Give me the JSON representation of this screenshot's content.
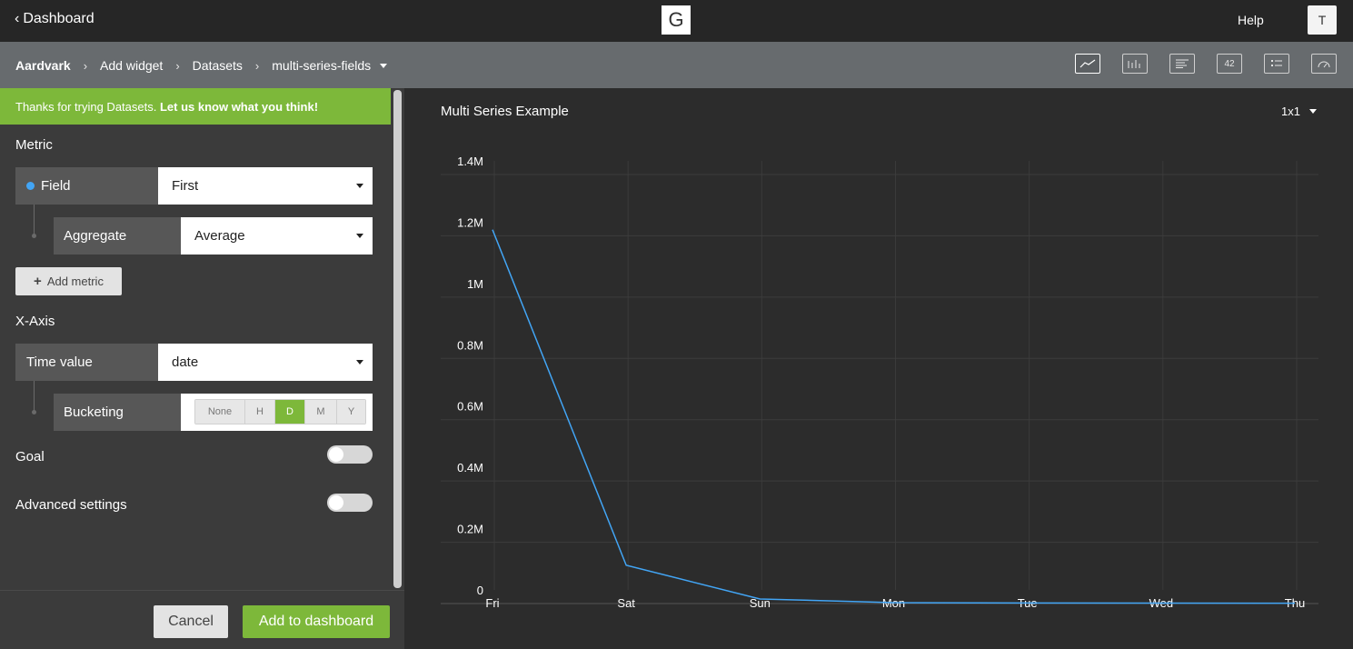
{
  "topbar": {
    "back_label": "Dashboard",
    "logo_letter": "G",
    "help_label": "Help",
    "avatar_initial": "T"
  },
  "breadcrumb": {
    "items": [
      "Aardvark",
      "Add widget",
      "Datasets",
      "multi-series-fields"
    ]
  },
  "viz_types": [
    {
      "name": "line-chart-icon",
      "label": "",
      "active": true
    },
    {
      "name": "bar-chart-icon",
      "label": "",
      "active": false
    },
    {
      "name": "text-icon",
      "label": "",
      "active": false
    },
    {
      "name": "number-icon",
      "label": "42",
      "active": false
    },
    {
      "name": "list-icon",
      "label": "",
      "active": false
    },
    {
      "name": "gauge-icon",
      "label": "",
      "active": false
    }
  ],
  "banner": {
    "text": "Thanks for trying Datasets.",
    "link": "Let us know what you think!"
  },
  "metric": {
    "section_label": "Metric",
    "field_label": "Field",
    "field_value": "First",
    "aggregate_label": "Aggregate",
    "aggregate_value": "Average",
    "add_metric_label": "Add metric"
  },
  "xaxis": {
    "section_label": "X-Axis",
    "time_label": "Time value",
    "time_value": "date",
    "bucketing_label": "Bucketing",
    "bucketing_options": [
      "None",
      "H",
      "D",
      "M",
      "Y"
    ],
    "bucketing_selected": "D"
  },
  "goal": {
    "label": "Goal",
    "enabled": false
  },
  "advanced": {
    "label": "Advanced settings",
    "enabled": false
  },
  "footer": {
    "cancel_label": "Cancel",
    "add_label": "Add to dashboard"
  },
  "widget": {
    "title": "Multi Series Example",
    "size": "1x1"
  },
  "colors": {
    "accent_green": "#7db83a",
    "series_blue": "#42a5f5"
  },
  "chart_data": {
    "type": "line",
    "title": "Multi Series Example",
    "x": [
      "Fri",
      "Sat",
      "Sun",
      "Mon",
      "Tue",
      "Wed",
      "Thu"
    ],
    "series": [
      {
        "values": [
          1220000,
          125000,
          15000,
          3000,
          2000,
          1500,
          1000
        ]
      }
    ],
    "ylim": [
      0,
      1400000
    ],
    "yticks": [
      0,
      200000,
      400000,
      600000,
      800000,
      1000000,
      1200000,
      1400000
    ],
    "ytick_labels": [
      "0",
      "0.2M",
      "0.4M",
      "0.6M",
      "0.8M",
      "1M",
      "1.2M",
      "1.4M"
    ],
    "grid": true,
    "legend": "none"
  }
}
